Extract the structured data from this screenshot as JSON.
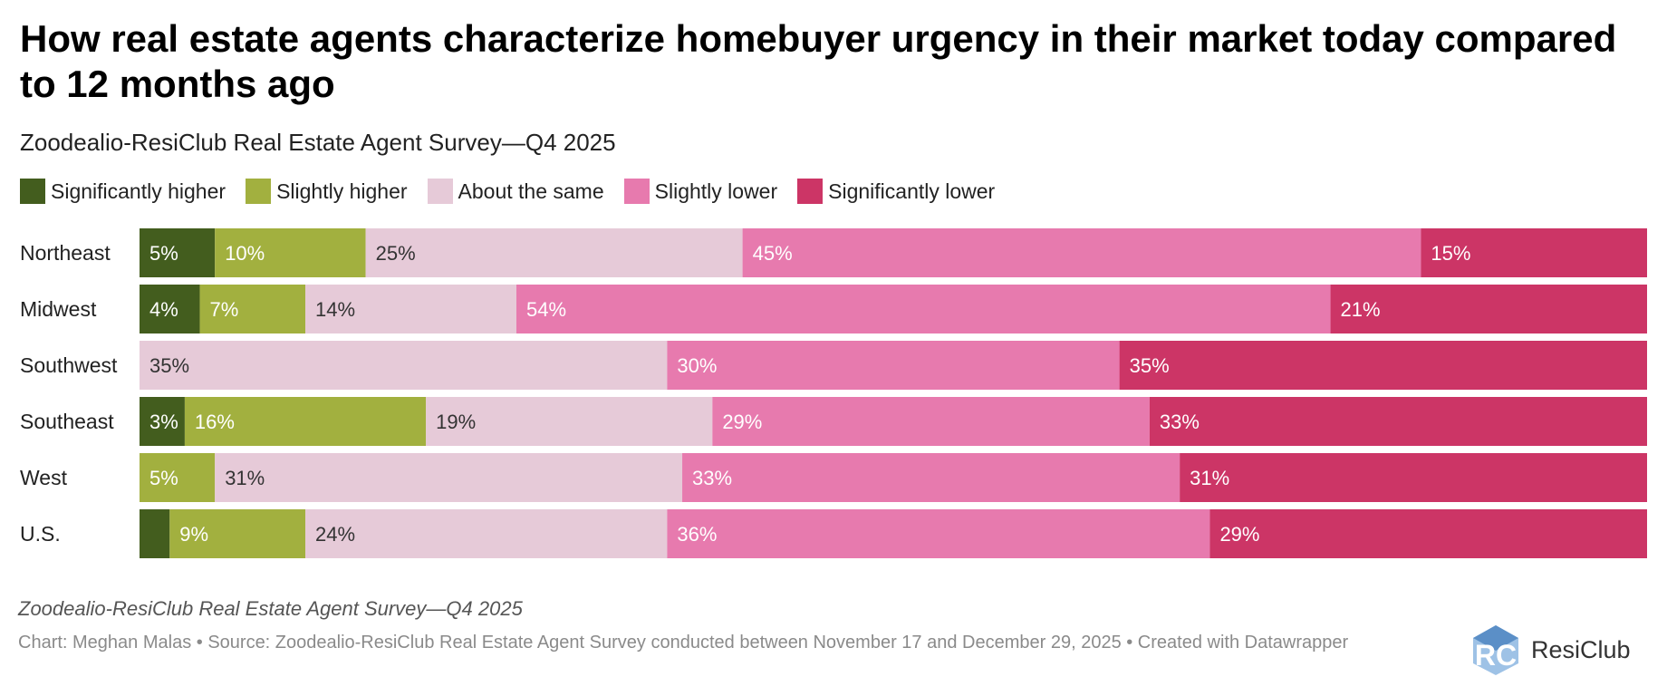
{
  "header": {
    "title": "How real estate agents characterize homebuyer urgency in their market today compared to 12 months ago",
    "subtitle": "Zoodealio-ResiClub Real Estate Agent Survey—Q4 2025"
  },
  "colors": {
    "significantly_higher": "#435d1e",
    "slightly_higher": "#a2b03f",
    "about_the_same": "#e6cad8",
    "slightly_lower": "#e77aae",
    "significantly_lower": "#cc3566"
  },
  "chart_data": {
    "type": "bar",
    "orientation": "horizontal",
    "stacked": true,
    "normalized": true,
    "title": "How real estate agents characterize homebuyer urgency in their market today compared to 12 months ago",
    "subtitle": "Zoodealio-ResiClub Real Estate Agent Survey—Q4 2025",
    "legend_position": "top",
    "categories": [
      "Northeast",
      "Midwest",
      "Southwest",
      "Southeast",
      "West",
      "U.S."
    ],
    "series": [
      {
        "name": "Significantly higher",
        "color": "#435d1e",
        "values": [
          5,
          4,
          0,
          3,
          0,
          2
        ],
        "labels": [
          "5%",
          "4%",
          "",
          "3%",
          "",
          ""
        ]
      },
      {
        "name": "Slightly higher",
        "color": "#a2b03f",
        "values": [
          10,
          7,
          0,
          16,
          5,
          9
        ],
        "labels": [
          "10%",
          "7%",
          "",
          "16%",
          "5%",
          "9%"
        ]
      },
      {
        "name": "About the same",
        "color": "#e6cad8",
        "values": [
          25,
          14,
          35,
          19,
          31,
          24
        ],
        "labels": [
          "25%",
          "14%",
          "35%",
          "19%",
          "31%",
          "24%"
        ]
      },
      {
        "name": "Slightly lower",
        "color": "#e77aae",
        "values": [
          45,
          54,
          30,
          29,
          33,
          36
        ],
        "labels": [
          "45%",
          "54%",
          "30%",
          "29%",
          "33%",
          "36%"
        ]
      },
      {
        "name": "Significantly lower",
        "color": "#cc3566",
        "values": [
          15,
          21,
          35,
          33,
          31,
          29
        ],
        "labels": [
          "15%",
          "21%",
          "35%",
          "33%",
          "31%",
          "29%"
        ]
      }
    ]
  },
  "footer": {
    "note": "Zoodealio-ResiClub Real Estate Agent Survey—Q4 2025",
    "credit": "Chart: Meghan Malas • Source: Zoodealio-ResiClub Real Estate Agent Survey conducted between November 17 and December 29, 2025 • Created with Datawrapper"
  },
  "logo": {
    "mark": "RC",
    "name": "ResiClub"
  }
}
